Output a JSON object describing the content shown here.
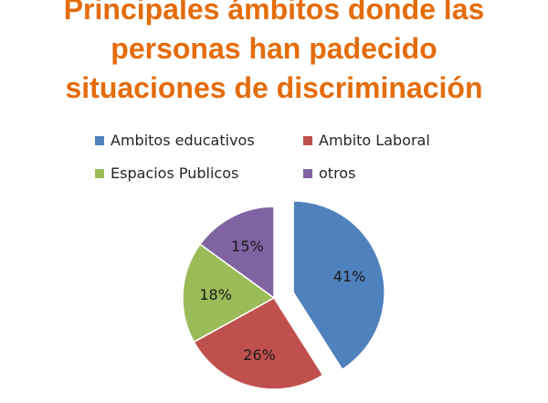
{
  "title": {
    "line1": "Principales ámbitos donde las",
    "line2": "personas han padecido",
    "line3": "situaciones de discriminación",
    "color": "#E46C0A"
  },
  "chart_data": {
    "type": "pie",
    "title": "Principales ámbitos donde las personas han padecido situaciones de discriminación",
    "legend_placement": "top",
    "slices": [
      {
        "label": "Ambitos educativos",
        "value": 41,
        "display": "41%",
        "color": "#4F81BD",
        "exploded": true
      },
      {
        "label": "Ambito Laboral",
        "value": 26,
        "display": "26%",
        "color": "#C0504D",
        "exploded": false
      },
      {
        "label": "Espacios Publicos",
        "value": 18,
        "display": "18%",
        "color": "#9BBB59",
        "exploded": false
      },
      {
        "label": "otros",
        "value": 15,
        "display": "15%",
        "color": "#8064A2",
        "exploded": false
      }
    ]
  }
}
